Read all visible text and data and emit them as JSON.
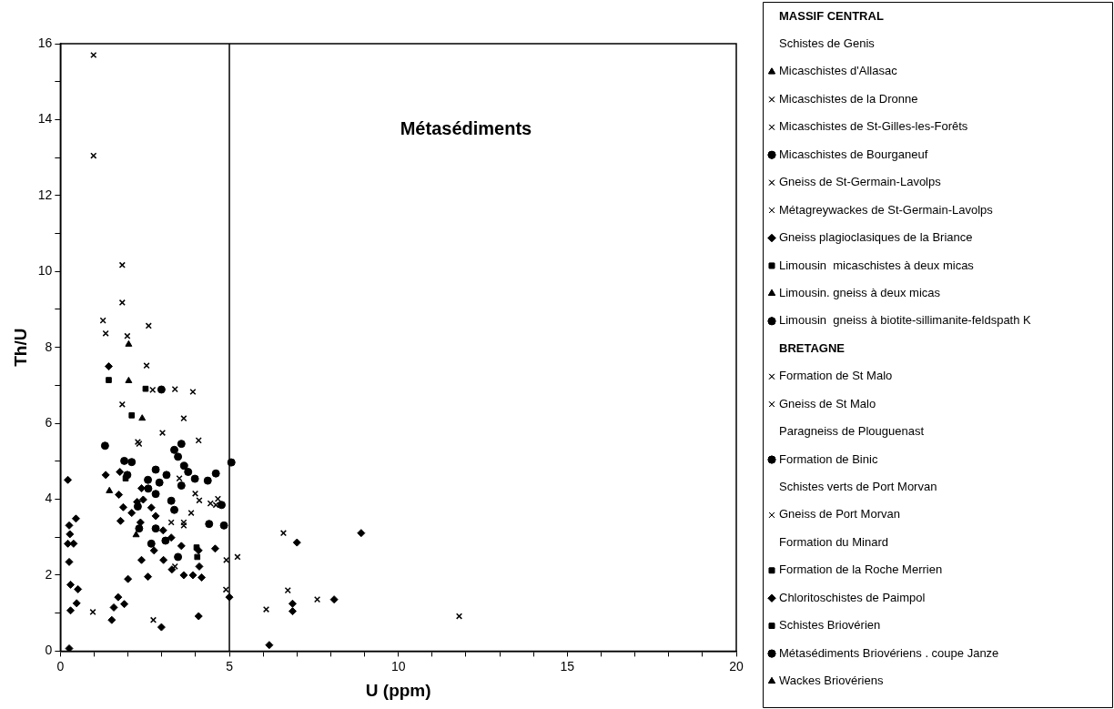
{
  "chart_data": {
    "type": "scatter",
    "xlabel": "U (ppm)",
    "ylabel": "Th/U",
    "annotations": [
      "Métasédiments",
      "MASSIF CENTRAL",
      "BRETAGNE"
    ],
    "xlim": [
      0,
      20
    ],
    "ylim": [
      0,
      16
    ],
    "xticks": [
      0,
      {
        "value": 1,
        "label": null
      },
      {
        "value": 2,
        "label": null
      },
      {
        "value": 3,
        "label": null
      },
      {
        "value": 4,
        "label": null
      },
      5,
      {
        "value": 6,
        "label": null
      },
      {
        "value": 7,
        "label": null
      },
      {
        "value": 8,
        "label": null
      },
      {
        "value": 9,
        "label": null
      },
      10,
      {
        "value": 11,
        "label": null
      },
      {
        "value": 12,
        "label": null
      },
      {
        "value": 13,
        "label": null
      },
      {
        "value": 14,
        "label": null
      },
      15,
      {
        "value": 16,
        "label": null
      },
      {
        "value": 17,
        "label": null
      },
      {
        "value": 18,
        "label": null
      },
      {
        "value": 19,
        "label": null
      },
      20
    ],
    "yticks": [
      0,
      {
        "value": 1,
        "label": null
      },
      2,
      {
        "value": 3,
        "label": null
      },
      4,
      {
        "value": 5,
        "label": null
      },
      6,
      {
        "value": 7,
        "label": null
      },
      8,
      {
        "value": 9,
        "label": null
      },
      10,
      {
        "value": 11,
        "label": null
      },
      12,
      {
        "value": 13,
        "label": null
      },
      14,
      {
        "value": 15,
        "label": null
      },
      16
    ],
    "grid": false,
    "legend": "right",
    "ref_lines": [
      {
        "axis": "x",
        "value": 5,
        "label": null,
        "color": "#000000"
      }
    ],
    "series": [
      {
        "name": "Schistes de Genis",
        "color": "#000000",
        "marker": "none"
      },
      {
        "name": "Micaschistes d'Allasac",
        "color": "#000000",
        "marker": "triangle",
        "x": [
          1.45
        ],
        "values": [
          4.22
        ]
      },
      {
        "name": "Micaschistes de la Dronne",
        "color": "#000000",
        "marker": "cross",
        "x": [
          2.61,
          3.92,
          4.09,
          2.29,
          3.65,
          4.44,
          4.66,
          7.6,
          6.73,
          1.98
        ],
        "values": [
          8.57,
          6.83,
          5.55,
          5.51,
          3.39,
          3.89,
          4.01,
          1.36,
          1.6,
          8.3
        ]
      },
      {
        "name": "Micaschistes de St-Gilles-les-Forêts",
        "color": "#000000",
        "marker": "cross",
        "x": [
          0.98,
          0.98,
          1.83,
          1.83,
          1.26,
          1.34,
          1.83,
          2.55,
          3.65,
          3.02,
          5.24,
          4.91,
          4.11,
          2.75,
          6.09,
          6.6,
          11.8,
          2.73,
          3.39
        ],
        "values": [
          15.7,
          13.05,
          10.17,
          9.18,
          8.71,
          8.37,
          6.5,
          7.52,
          6.13,
          5.75,
          2.48,
          2.4,
          3.97,
          0.82,
          1.1,
          3.11,
          0.92,
          6.88,
          6.9
        ]
      },
      {
        "name": "Micaschistes de Bourganeuf",
        "color": "#000000",
        "marker": "circle",
        "x": [
          2.99,
          3.58,
          3.37,
          3.48,
          3.66,
          3.78,
          3.98,
          4.36,
          3.58,
          3.14,
          2.82,
          2.93,
          2.6,
          4.77,
          4.84,
          5.06,
          3.28,
          3.37,
          2.82
        ],
        "values": [
          6.89,
          5.46,
          5.3,
          5.12,
          4.88,
          4.72,
          4.54,
          4.49,
          4.36,
          4.64,
          4.78,
          4.44,
          4.28,
          3.85,
          3.31,
          4.97,
          3.96,
          3.72,
          4.14
        ]
      },
      {
        "name": "Gneiss de St-Germain-Lavolps",
        "color": "#000000",
        "marker": "cross",
        "x": [
          3.52,
          3.99,
          3.87
        ],
        "values": [
          4.55,
          4.15,
          3.64
        ]
      },
      {
        "name": "Métagreywackes de St-Germain-Lavolps",
        "color": "#000000",
        "marker": "cross",
        "x": [
          3.39,
          0.96
        ],
        "values": [
          2.23,
          1.03
        ]
      },
      {
        "name": "Gneiss plagioclasiques de la Briance",
        "color": "#000000",
        "marker": "diamond",
        "x": [
          0.22,
          1.34,
          1.76,
          1.73,
          1.86,
          1.78,
          2.4,
          2.45,
          2.69,
          2.82,
          2.37,
          3.04,
          3.28,
          3.58,
          4.09,
          4.58,
          2.4,
          2.77,
          3.05,
          3.3,
          3.65,
          3.92,
          4.18,
          4.11,
          2.59,
          2.0,
          0.52,
          1.71,
          1.89,
          1.58,
          1.52,
          2.99,
          4.09,
          5.0,
          6.18,
          2.27,
          2.11,
          8.9,
          7.0,
          6.87,
          6.87,
          8.1
        ],
        "values": [
          4.51,
          4.64,
          4.72,
          4.12,
          3.79,
          3.43,
          4.29,
          3.99,
          3.78,
          3.56,
          3.39,
          3.18,
          2.99,
          2.77,
          2.65,
          2.7,
          2.4,
          2.65,
          2.4,
          2.15,
          2.0,
          2.0,
          1.94,
          2.23,
          1.96,
          1.9,
          1.63,
          1.42,
          1.24,
          1.15,
          0.82,
          0.63,
          0.92,
          1.42,
          0.16,
          3.93,
          3.64,
          3.11,
          2.86,
          1.25,
          1.05,
          1.36
        ]
      },
      {
        "name": "Limousin  micaschistes à deux micas",
        "color": "#000000",
        "marker": "square",
        "x": [
          1.43,
          2.52,
          2.11
        ],
        "values": [
          7.14,
          6.91,
          6.21
        ]
      },
      {
        "name": "Limousin. gneiss à deux micas",
        "color": "#000000",
        "marker": "triangle",
        "x": [
          2.02,
          2.02,
          2.42
        ],
        "values": [
          8.08,
          7.12,
          6.13
        ]
      },
      {
        "name": "Limousin  gneiss à biotite-sillimanite-feldspath K",
        "color": "#000000",
        "marker": "circle",
        "x": [
          1.89,
          2.11,
          4.6,
          2.59,
          4.4
        ],
        "values": [
          5.01,
          4.98,
          4.68,
          4.51,
          3.35
        ]
      },
      {
        "name": "Formation de St Malo",
        "color": "#000000",
        "marker": "cross",
        "x": [
          4.9
        ],
        "values": [
          1.62
        ]
      },
      {
        "name": "Gneiss de St Malo",
        "color": "#000000",
        "marker": "cross",
        "x": [
          2.33,
          4.6
        ],
        "values": [
          5.46,
          3.85
        ]
      },
      {
        "name": "Paragneiss de Plouguenast",
        "color": "#000000",
        "marker": "none"
      },
      {
        "name": "Formation de Binic",
        "color": "#000000",
        "marker": "circle",
        "x": [
          1.32
        ],
        "values": [
          5.41
        ]
      },
      {
        "name": "Schistes verts de Port Morvan",
        "color": "#000000",
        "marker": "none"
      },
      {
        "name": "Gneiss de Port Morvan",
        "color": "#000000",
        "marker": "cross",
        "x": [
          3.28,
          3.65
        ],
        "values": [
          3.39,
          3.31
        ]
      },
      {
        "name": "Formation du Minard",
        "color": "#000000",
        "marker": "none"
      },
      {
        "name": "Formation de la Roche Merrien",
        "color": "#000000",
        "marker": "square",
        "x": [
          4.05
        ],
        "values": [
          2.48
        ]
      },
      {
        "name": "Chloritoschistes de Paimpol",
        "color": "#000000",
        "marker": "diamond",
        "x": [
          0.26,
          0.28,
          0.22,
          0.39,
          0.46,
          0.26,
          0.3,
          0.3,
          0.48,
          0.26,
          1.43
        ],
        "values": [
          3.31,
          3.08,
          2.83,
          2.83,
          3.49,
          2.35,
          1.75,
          1.07,
          1.26,
          0.07,
          7.5
        ]
      },
      {
        "name": "Schistes Briovérien",
        "color": "#000000",
        "marker": "square",
        "x": [
          4.03,
          1.93
        ],
        "values": [
          2.73,
          4.55
        ]
      },
      {
        "name": "Métasédiments Briovériens . coupe Janze",
        "color": "#000000",
        "marker": "circle",
        "x": [
          1.98,
          2.29,
          2.33,
          2.82,
          3.11,
          2.69,
          3.48
        ],
        "values": [
          4.64,
          3.81,
          3.23,
          3.23,
          2.91,
          2.83,
          2.48
        ]
      },
      {
        "name": "Wackes Briovériens",
        "color": "#000000",
        "marker": "triangle",
        "x": [
          2.24
        ],
        "values": [
          3.06
        ]
      }
    ]
  }
}
